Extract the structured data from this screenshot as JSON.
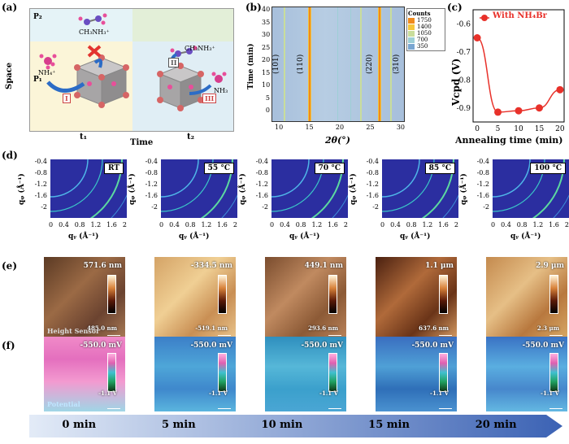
{
  "panel_labels": {
    "a": "(a)",
    "b": "(b)",
    "c": "(c)",
    "d": "(d)",
    "e": "(e)",
    "f": "(f)"
  },
  "panel_a": {
    "y_axis": "Space",
    "x_axis": "Time",
    "p2": "P₂",
    "p1": "P₁",
    "t1": "t₁",
    "t2": "t₂",
    "ch3nh3_top": "CH₃NH₃⁺",
    "ch3nh3_right": "CH₃NH₃⁺",
    "nh4": "NH₄⁺",
    "nh3": "NH₃",
    "step1": "I",
    "step2": "II",
    "step3": "III"
  },
  "panel_b": {
    "ylabel": "Time (min)",
    "xlabel": "2θ(°)",
    "legend_title": "Counts",
    "legend": [
      {
        "label": "1750",
        "color": "#f08a1c"
      },
      {
        "label": "1400",
        "color": "#f6c63a"
      },
      {
        "label": "1050",
        "color": "#c9dd9b"
      },
      {
        "label": "700",
        "color": "#9ecfd6"
      },
      {
        "label": "350",
        "color": "#7aa6d1"
      }
    ],
    "x_ticks": [
      "10",
      "15",
      "20",
      "25",
      "30"
    ],
    "y_ticks": [
      "0",
      "5",
      "10",
      "15",
      "20",
      "25",
      "30",
      "35",
      "40"
    ],
    "peaks": [
      "(101)",
      "(110)",
      "(220)",
      "(310)"
    ]
  },
  "chart_data": {
    "type": "line",
    "title": "",
    "xlabel": "Annealing time (min)",
    "ylabel": "Vcpd (V)",
    "series": [
      {
        "name": "With NH₄Br",
        "x": [
          0,
          5,
          10,
          15,
          20
        ],
        "y": [
          -0.65,
          -0.915,
          -0.91,
          -0.9,
          -0.835
        ]
      }
    ],
    "xlim": [
      -1,
      21
    ],
    "ylim": [
      -0.95,
      -0.55
    ],
    "x_ticks": [
      "0",
      "5",
      "10",
      "15",
      "20"
    ],
    "y_ticks": [
      "-0.6",
      "-0.7",
      "-0.8",
      "-0.9"
    ],
    "color": "#e8312a",
    "legend": "top"
  },
  "panel_d": {
    "ylabel": "qᵩ (Å⁻¹)",
    "xlabel": "qᵧ (Å⁻¹)",
    "y_ticks": [
      "-0.4",
      "-0.8",
      "-1.2",
      "-1.6",
      "-2"
    ],
    "x_ticks": [
      "0",
      "0.4",
      "0.8",
      "1.2",
      "1.6",
      "2"
    ],
    "temps": [
      "RT",
      "55 °C",
      "70 °C",
      "85 °C",
      "100 °C"
    ]
  },
  "panel_e": {
    "label": "Height Sensor",
    "tops": [
      "571.6 nm",
      "-334.5 nm",
      "449.1 nm",
      "1.1 μm",
      "2.9 μm"
    ],
    "bottoms": [
      "485.0 nm",
      "-519.1 nm",
      "293.6 nm",
      "637.6 nm",
      "2.3 μm"
    ]
  },
  "panel_f": {
    "label": "Potential",
    "top": "-550.0 mV",
    "bottom": "-1.1 V"
  },
  "timeline": [
    "0 min",
    "5 min",
    "10 min",
    "15 min",
    "20 min"
  ]
}
